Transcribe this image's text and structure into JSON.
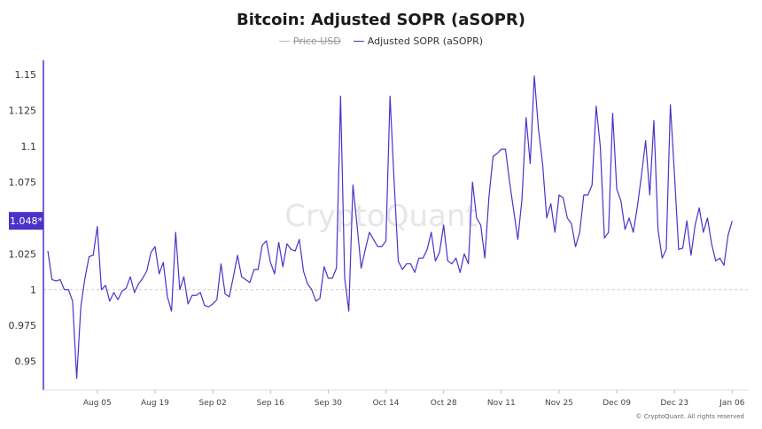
{
  "title": "Bitcoin: Adjusted SOPR (aSOPR)",
  "legend": [
    {
      "name": "Price USD",
      "color": "#bdbdbd",
      "hidden": true
    },
    {
      "name": "Adjusted SOPR (aSOPR)",
      "color": "#4b32c9",
      "hidden": false
    }
  ],
  "watermark": "CryptoQuant",
  "footer": "© CryptoQuant. All rights reserved",
  "colors": {
    "series": "#4b32c9",
    "axis": "#4b32c9",
    "current_label_bg": "#4b32c9",
    "baseline": "#cccccc"
  },
  "chart_data": {
    "type": "line",
    "title": "Bitcoin: Adjusted SOPR (aSOPR)",
    "y_ticks": [
      "1.15",
      "1.125",
      "1.1",
      "1.075",
      "1.05",
      "1.025",
      "1",
      "0.975",
      "0.95"
    ],
    "ylim": [
      0.93,
      1.16
    ],
    "x_ticks": [
      {
        "label": "Aug 05",
        "x": 12
      },
      {
        "label": "Aug 19",
        "x": 26
      },
      {
        "label": "Sep 02",
        "x": 40
      },
      {
        "label": "Sep 16",
        "x": 54
      },
      {
        "label": "Sep 30",
        "x": 68
      },
      {
        "label": "Oct 14",
        "x": 82
      },
      {
        "label": "Oct 28",
        "x": 96
      },
      {
        "label": "Nov 11",
        "x": 110
      },
      {
        "label": "Nov 25",
        "x": 124
      },
      {
        "label": "Dec 09",
        "x": 138
      },
      {
        "label": "Dec 23",
        "x": 152
      },
      {
        "label": "Jan 06",
        "x": 166
      }
    ],
    "x_range": [
      0,
      170
    ],
    "baseline": 1,
    "current_value_label": "1.048*",
    "current_value": 1.048,
    "series": [
      {
        "name": "Adjusted SOPR (aSOPR)",
        "color": "#4b32c9",
        "values": [
          1.027,
          1.007,
          1.006,
          1.007,
          1.0,
          1.0,
          0.992,
          0.938,
          0.988,
          1.008,
          1.023,
          1.024,
          1.044,
          1.0,
          1.003,
          0.992,
          0.998,
          0.993,
          0.999,
          1.001,
          1.009,
          0.998,
          1.004,
          1.008,
          1.013,
          1.026,
          1.03,
          1.011,
          1.019,
          0.995,
          0.985,
          1.04,
          1.0,
          1.009,
          0.99,
          0.996,
          0.996,
          0.998,
          0.989,
          0.988,
          0.99,
          0.993,
          1.018,
          0.997,
          0.995,
          1.009,
          1.024,
          1.009,
          1.007,
          1.005,
          1.014,
          1.014,
          1.031,
          1.034,
          1.019,
          1.011,
          1.033,
          1.016,
          1.032,
          1.028,
          1.027,
          1.035,
          1.013,
          1.004,
          1.0,
          0.992,
          0.994,
          1.016,
          1.008,
          1.008,
          1.015,
          1.135,
          1.008,
          0.985,
          1.073,
          1.045,
          1.015,
          1.028,
          1.04,
          1.035,
          1.03,
          1.03,
          1.034,
          1.135,
          1.075,
          1.02,
          1.014,
          1.018,
          1.018,
          1.012,
          1.022,
          1.022,
          1.028,
          1.04,
          1.02,
          1.026,
          1.045,
          1.02,
          1.018,
          1.022,
          1.012,
          1.025,
          1.018,
          1.075,
          1.05,
          1.045,
          1.022,
          1.065,
          1.093,
          1.095,
          1.098,
          1.098,
          1.075,
          1.055,
          1.035,
          1.063,
          1.12,
          1.088,
          1.149,
          1.112,
          1.088,
          1.05,
          1.06,
          1.04,
          1.066,
          1.064,
          1.05,
          1.046,
          1.03,
          1.04,
          1.066,
          1.066,
          1.073,
          1.128,
          1.1,
          1.036,
          1.04,
          1.123,
          1.07,
          1.062,
          1.042,
          1.05,
          1.04,
          1.058,
          1.08,
          1.104,
          1.066,
          1.118,
          1.042,
          1.022,
          1.028,
          1.129,
          1.08,
          1.028,
          1.029,
          1.048,
          1.024,
          1.045,
          1.057,
          1.04,
          1.05,
          1.032,
          1.02,
          1.022,
          1.017,
          1.038,
          1.048
        ]
      }
    ]
  }
}
